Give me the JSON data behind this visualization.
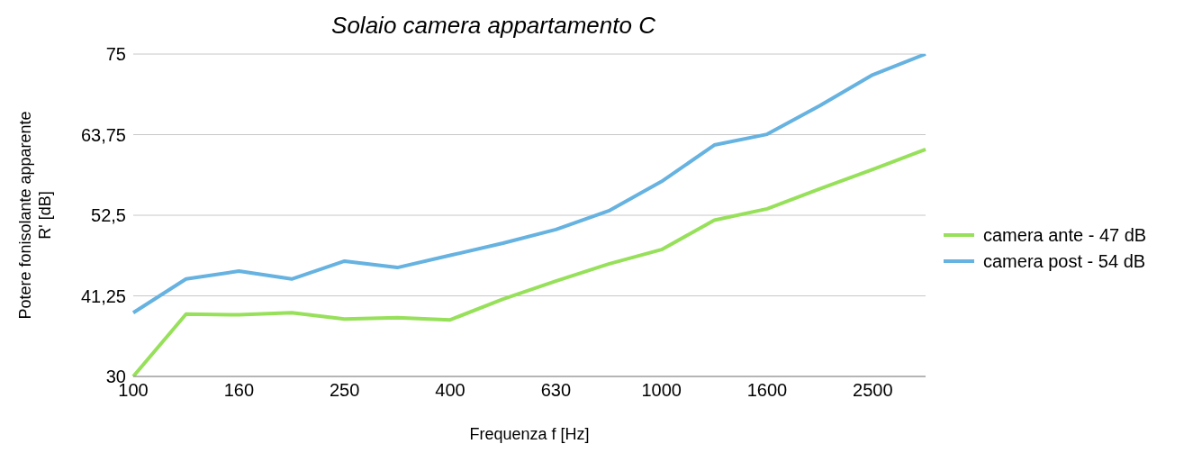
{
  "chart_data": {
    "type": "line",
    "title": "Solaio camera appartamento C",
    "xlabel": "Frequenza f [Hz]",
    "ylabel": "Potere fonisolante apparente R' [dB]",
    "categories": [
      "100",
      null,
      "160",
      null,
      "250",
      null,
      "400",
      null,
      "630",
      null,
      "1000",
      null,
      "1600",
      null,
      "2500",
      null
    ],
    "series": [
      {
        "name": "camera ante - 47 dB",
        "color": "#97e05a",
        "values": [
          30,
          38.7,
          38.6,
          38.9,
          38.0,
          38.2,
          37.9,
          40.8,
          43.3,
          45.7,
          47.7,
          51.8,
          53.4,
          56.2,
          58.9,
          61.7
        ]
      },
      {
        "name": "camera post - 54 dB",
        "color": "#66b2e0",
        "values": [
          38.9,
          43.6,
          44.7,
          43.6,
          46.1,
          45.2,
          46.9,
          48.6,
          50.5,
          53.1,
          57.2,
          62.3,
          63.8,
          67.8,
          72.1,
          75
        ]
      }
    ],
    "ylim": [
      30,
      75
    ],
    "yticks": [
      30,
      {
        "value": 41.25,
        "label": "41,25"
      },
      {
        "value": 52.5,
        "label": "52,5"
      },
      {
        "value": 63.75,
        "label": "63,75"
      },
      75
    ],
    "grid": "y",
    "legend": "right",
    "marker": "none",
    "line_style": "solid"
  }
}
